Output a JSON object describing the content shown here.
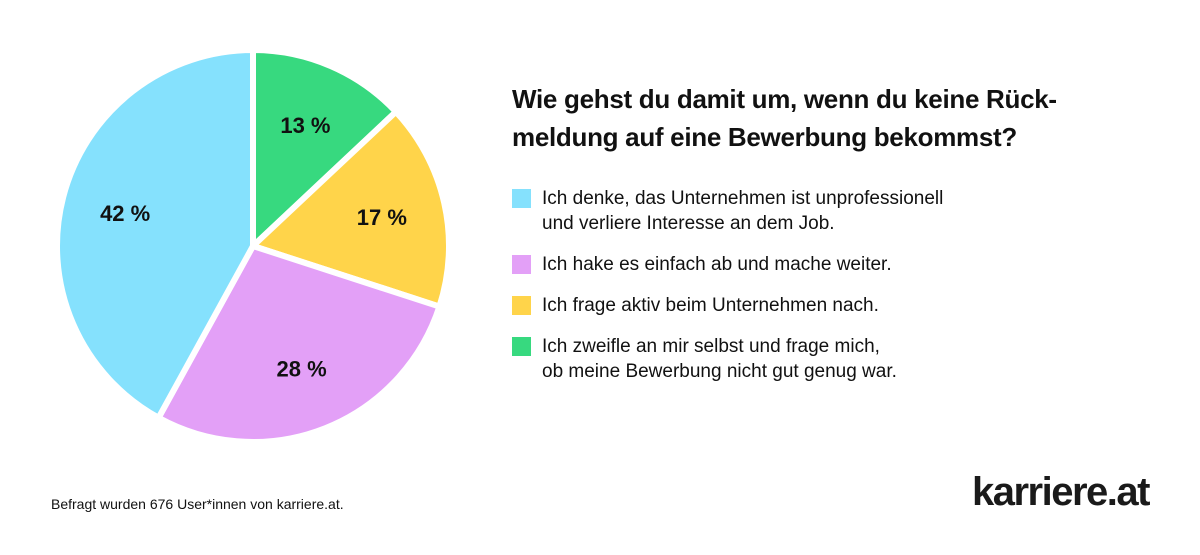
{
  "chart_data": {
    "type": "pie",
    "title": "Wie gehst du damit um, wenn du keine Rück-\nmeldung auf eine Bewerbung bekommst?",
    "start": "12 o'clock",
    "direction": "clockwise",
    "slices": [
      {
        "label": "Ich zweifle an mir selbst und frage mich,\nob meine Bewerbung nicht gut genug war.",
        "value": 13,
        "display": "13 %",
        "color": "#37D97F"
      },
      {
        "label": "Ich frage aktiv beim Unternehmen nach.",
        "value": 17,
        "display": "17 %",
        "color": "#FFD44A"
      },
      {
        "label": "Ich hake es einfach ab und mache weiter.",
        "value": 28,
        "display": "28 %",
        "color": "#E3A0F7"
      },
      {
        "label": "Ich denke, das Unternehmen ist unprofessionell\nund verliere Interesse an dem Job.",
        "value": 42,
        "display": "42 %",
        "color": "#85E1FD"
      }
    ],
    "legend": {
      "placement": "right",
      "order": [
        3,
        2,
        1,
        0
      ]
    }
  },
  "title": "Wie gehst du damit um, wenn du keine Rück-\nmeldung auf eine Bewerbung bekommst?",
  "legend": [
    {
      "label": "Ich denke, das Unternehmen ist unprofessionell\nund verliere Interesse an dem Job.",
      "color": "#85E1FD"
    },
    {
      "label": "Ich hake es einfach ab und mache weiter.",
      "color": "#E3A0F7"
    },
    {
      "label": "Ich frage aktiv beim Unternehmen nach.",
      "color": "#FFD44A"
    },
    {
      "label": "Ich zweifle an mir selbst und frage mich,\nob meine Bewerbung nicht gut genug war.",
      "color": "#37D97F"
    }
  ],
  "footnote": "Befragt wurden 676 User*innen von karriere.at.",
  "logo": "karriere.at"
}
